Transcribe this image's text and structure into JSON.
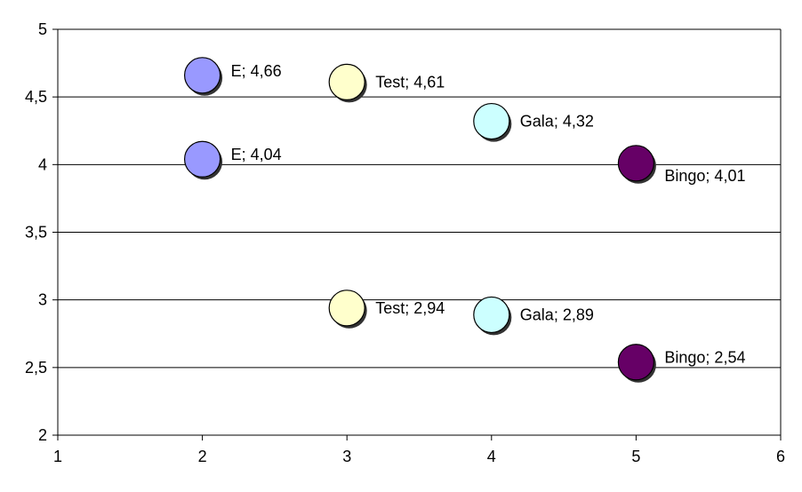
{
  "chart_data": {
    "type": "scatter",
    "title": "",
    "xlabel": "",
    "ylabel": "",
    "xlim": [
      1,
      6
    ],
    "ylim": [
      2,
      5
    ],
    "x_ticks": [
      1,
      2,
      3,
      4,
      5,
      6
    ],
    "y_ticks": [
      2,
      2.5,
      3,
      3.5,
      4,
      4.5,
      5
    ],
    "x_tick_labels": [
      "1",
      "2",
      "3",
      "4",
      "5",
      "6"
    ],
    "y_tick_labels": [
      "2",
      "2,5",
      "3",
      "3,5",
      "4",
      "4,5",
      "5"
    ],
    "grid": "horizontal",
    "legend": "none",
    "points": [
      {
        "label": "E",
        "x": 2,
        "y": 4.66,
        "data_label": "E; 4,66",
        "color": "#9999ff",
        "label_pos": "right-above"
      },
      {
        "label": "E",
        "x": 2,
        "y": 4.04,
        "data_label": "E; 4,04",
        "color": "#9999ff",
        "label_pos": "right-above"
      },
      {
        "label": "Test",
        "x": 3,
        "y": 4.61,
        "data_label": "Test; 4,61",
        "color": "#ffffcc",
        "label_pos": "right"
      },
      {
        "label": "Test",
        "x": 3,
        "y": 2.94,
        "data_label": "Test; 2,94",
        "color": "#ffffcc",
        "label_pos": "right"
      },
      {
        "label": "Gala",
        "x": 4,
        "y": 4.32,
        "data_label": "Gala; 4,32",
        "color": "#ccffff",
        "label_pos": "right"
      },
      {
        "label": "Gala",
        "x": 4,
        "y": 2.89,
        "data_label": "Gala; 2,89",
        "color": "#ccffff",
        "label_pos": "right"
      },
      {
        "label": "Bingo",
        "x": 5,
        "y": 4.01,
        "data_label": "Bingo; 4,01",
        "color": "#660066",
        "label_pos": "right-below"
      },
      {
        "label": "Bingo",
        "x": 5,
        "y": 2.54,
        "data_label": "Bingo; 2,54",
        "color": "#660066",
        "label_pos": "right-above"
      }
    ]
  }
}
